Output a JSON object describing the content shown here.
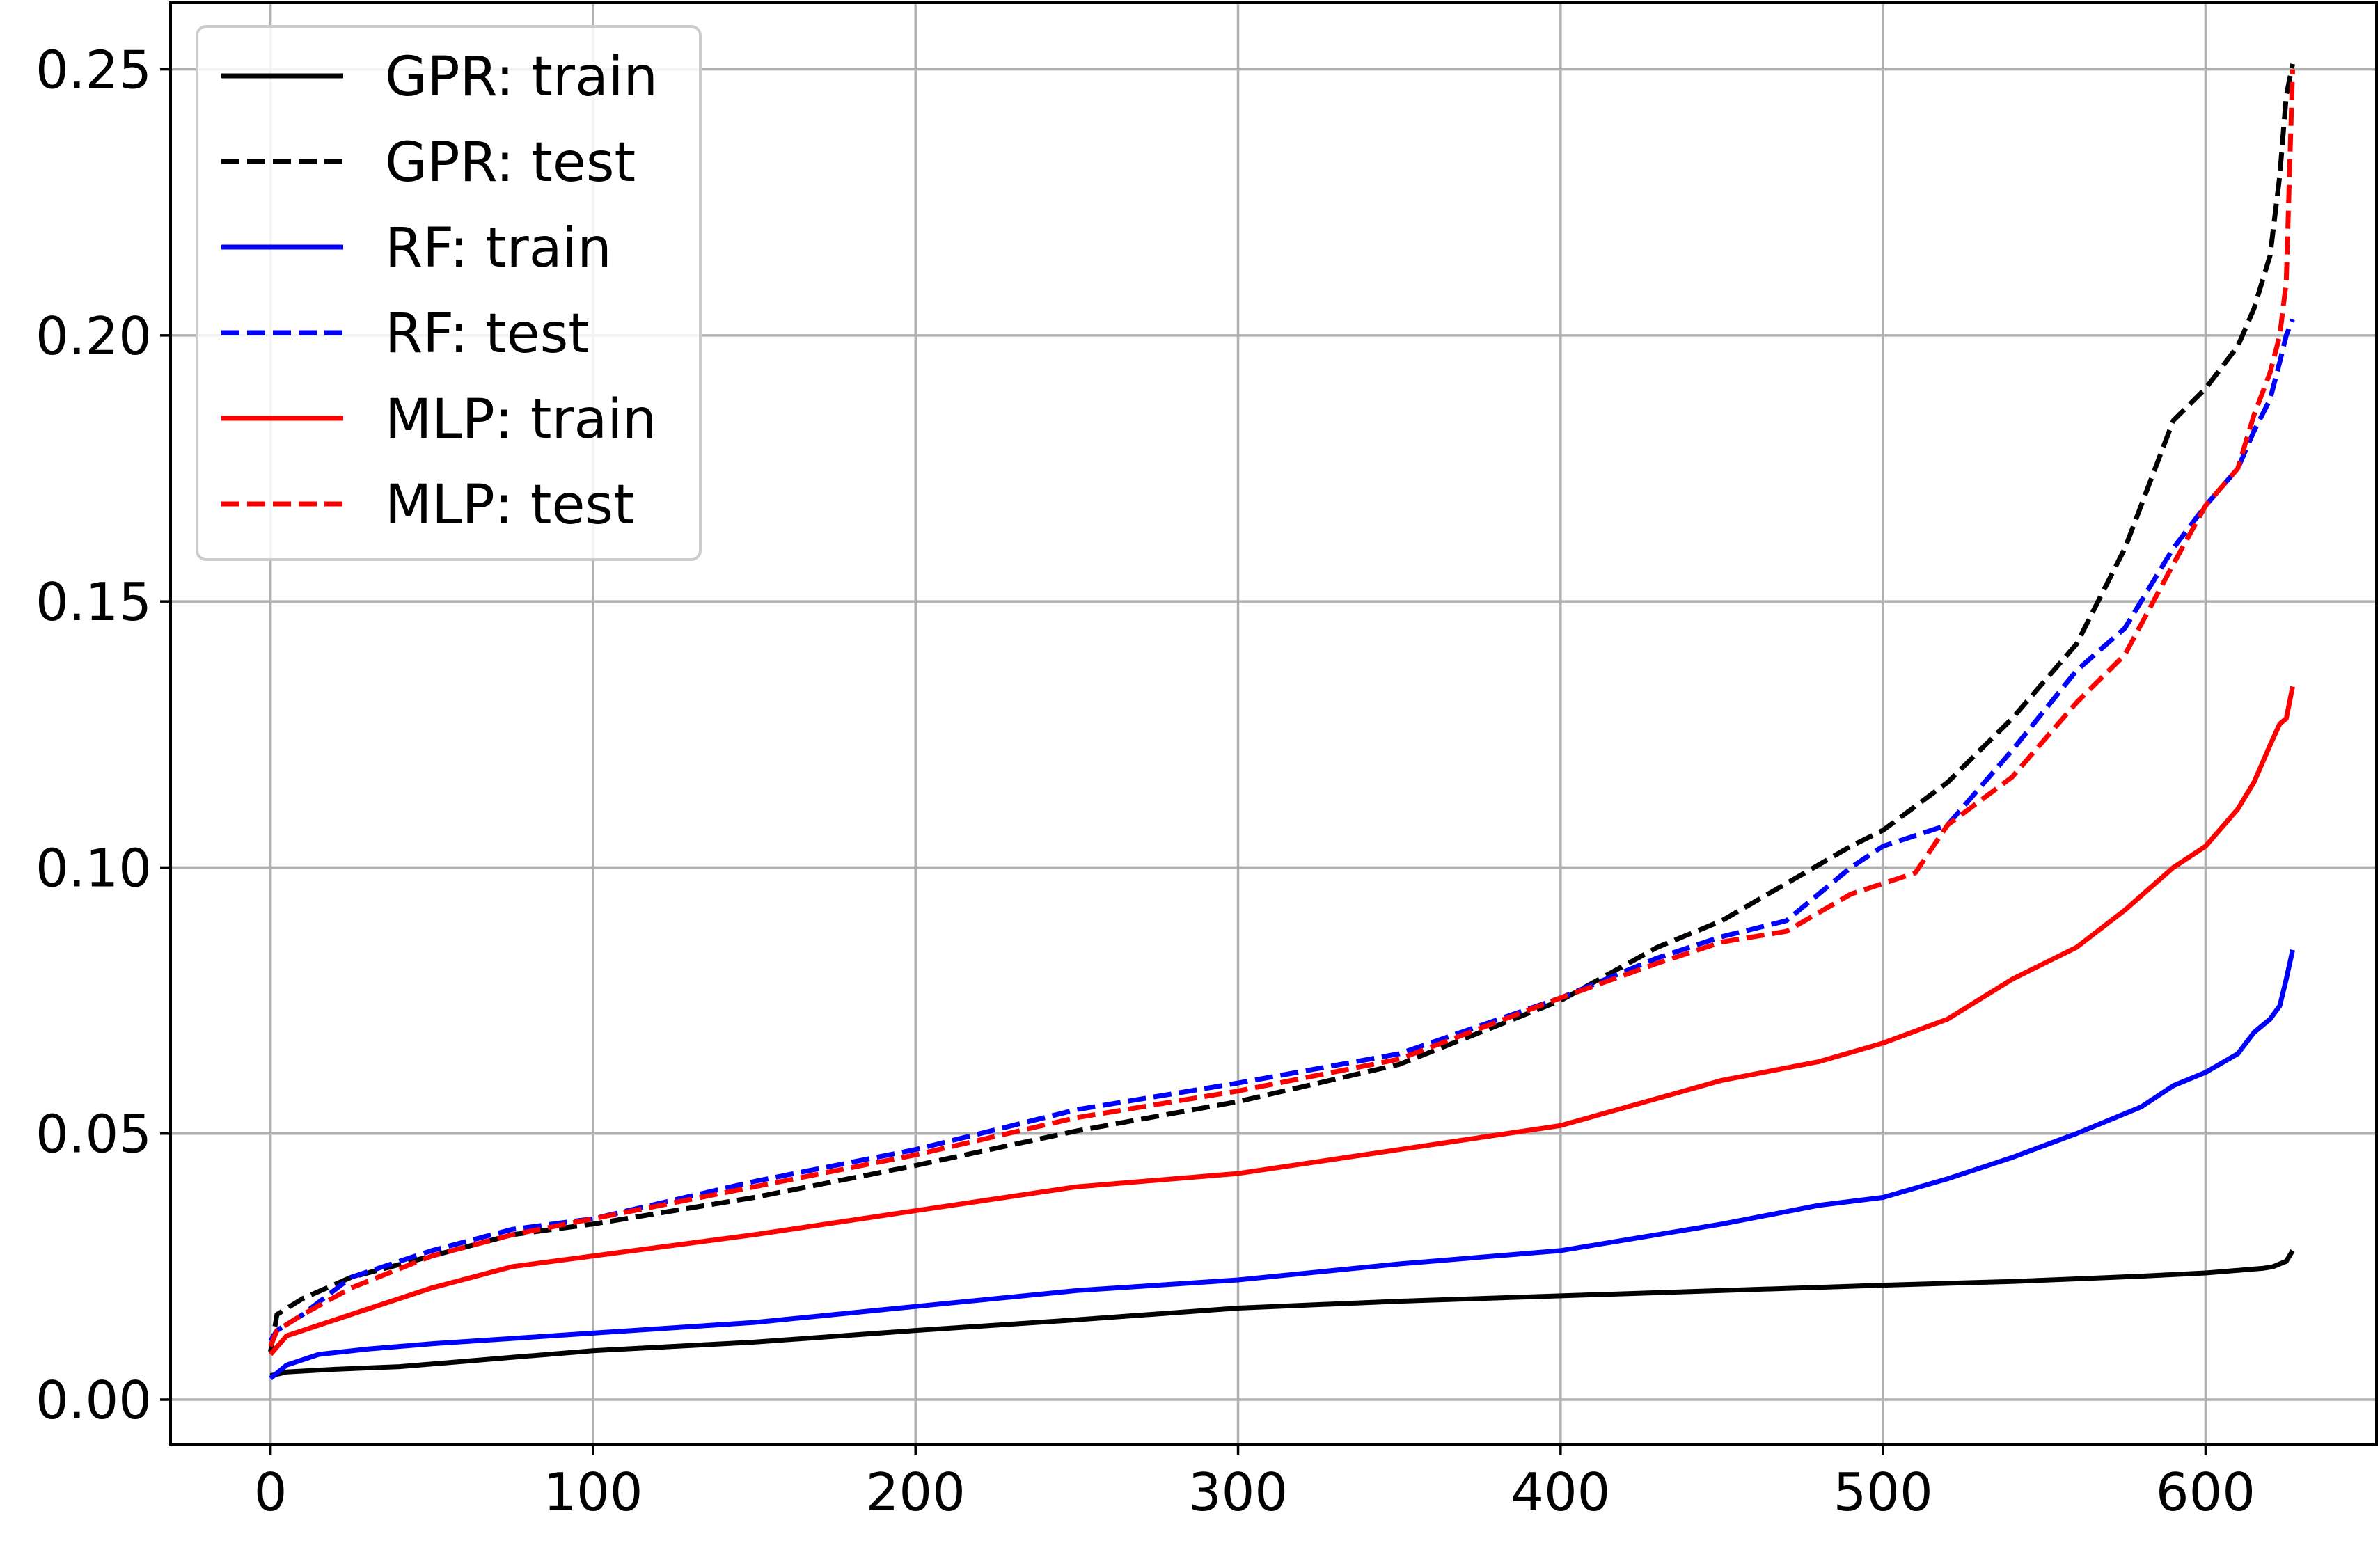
{
  "chart_data": {
    "type": "line",
    "title": "",
    "xlabel": "",
    "ylabel": "",
    "xlim": [
      -31,
      653
    ],
    "ylim": [
      -0.0085,
      0.2625
    ],
    "grid": true,
    "legend_position": "top-left",
    "xticks": [
      0,
      100,
      200,
      300,
      400,
      500,
      600
    ],
    "xtick_labels": [
      "0",
      "100",
      "200",
      "300",
      "400",
      "500",
      "600"
    ],
    "yticks": [
      0.0,
      0.05,
      0.1,
      0.15,
      0.2,
      0.25
    ],
    "ytick_labels": [
      "0.00",
      "0.05",
      "0.10",
      "0.15",
      "0.20",
      "0.25"
    ],
    "series": [
      {
        "name": "GPR: train",
        "color": "#000000",
        "dash": "solid",
        "x": [
          0,
          5,
          20,
          40,
          60,
          80,
          100,
          150,
          200,
          250,
          300,
          350,
          400,
          450,
          500,
          540,
          560,
          580,
          600,
          610,
          618,
          621,
          623,
          625,
          627
        ],
        "y": [
          0.0045,
          0.0052,
          0.0057,
          0.0062,
          0.0072,
          0.0082,
          0.0092,
          0.0108,
          0.013,
          0.015,
          0.0172,
          0.0185,
          0.0195,
          0.0205,
          0.0215,
          0.0222,
          0.0227,
          0.0232,
          0.0238,
          0.0243,
          0.0247,
          0.025,
          0.0255,
          0.026,
          0.028
        ]
      },
      {
        "name": "GPR: test",
        "color": "#000000",
        "dash": "dashed",
        "x": [
          0,
          2,
          10,
          25,
          50,
          75,
          100,
          150,
          200,
          250,
          300,
          350,
          400,
          430,
          450,
          470,
          490,
          500,
          520,
          540,
          560,
          575,
          590,
          600,
          610,
          615,
          620,
          623,
          625,
          627
        ],
        "y": [
          0.009,
          0.016,
          0.019,
          0.023,
          0.027,
          0.031,
          0.033,
          0.038,
          0.044,
          0.0505,
          0.056,
          0.063,
          0.075,
          0.085,
          0.09,
          0.097,
          0.104,
          0.107,
          0.116,
          0.128,
          0.142,
          0.16,
          0.184,
          0.19,
          0.198,
          0.205,
          0.215,
          0.23,
          0.245,
          0.251
        ]
      },
      {
        "name": "RF: train",
        "color": "#0000ff",
        "dash": "solid",
        "x": [
          0,
          5,
          15,
          30,
          50,
          75,
          100,
          150,
          200,
          250,
          300,
          350,
          400,
          450,
          480,
          500,
          520,
          540,
          560,
          580,
          590,
          600,
          610,
          615,
          620,
          623,
          625,
          627
        ],
        "y": [
          0.004,
          0.0065,
          0.0085,
          0.0095,
          0.0105,
          0.0115,
          0.0125,
          0.0145,
          0.0175,
          0.0205,
          0.0225,
          0.0255,
          0.028,
          0.033,
          0.0365,
          0.038,
          0.0415,
          0.0455,
          0.05,
          0.055,
          0.059,
          0.0615,
          0.065,
          0.069,
          0.0715,
          0.074,
          0.079,
          0.0845
        ]
      },
      {
        "name": "RF: test",
        "color": "#0000ff",
        "dash": "dashed",
        "x": [
          0,
          2,
          10,
          25,
          50,
          75,
          100,
          150,
          200,
          250,
          300,
          350,
          400,
          430,
          450,
          470,
          490,
          500,
          520,
          540,
          560,
          575,
          590,
          600,
          610,
          615,
          620,
          623,
          625,
          627
        ],
        "y": [
          0.011,
          0.013,
          0.016,
          0.023,
          0.028,
          0.032,
          0.034,
          0.041,
          0.047,
          0.0545,
          0.0595,
          0.065,
          0.0755,
          0.083,
          0.087,
          0.09,
          0.1,
          0.104,
          0.108,
          0.122,
          0.137,
          0.145,
          0.16,
          0.168,
          0.175,
          0.182,
          0.188,
          0.195,
          0.2,
          0.203
        ]
      },
      {
        "name": "MLP: train",
        "color": "#ff0000",
        "dash": "solid",
        "x": [
          0,
          5,
          15,
          30,
          50,
          75,
          100,
          150,
          200,
          250,
          300,
          350,
          400,
          450,
          480,
          500,
          520,
          540,
          560,
          575,
          590,
          600,
          610,
          615,
          620,
          623,
          625,
          627
        ],
        "y": [
          0.0085,
          0.012,
          0.014,
          0.017,
          0.021,
          0.025,
          0.027,
          0.031,
          0.0355,
          0.04,
          0.0425,
          0.047,
          0.0515,
          0.06,
          0.0635,
          0.067,
          0.0715,
          0.079,
          0.085,
          0.092,
          0.1,
          0.104,
          0.111,
          0.116,
          0.123,
          0.127,
          0.128,
          0.134
        ]
      },
      {
        "name": "MLP: test",
        "color": "#ff0000",
        "dash": "dashed",
        "x": [
          0,
          2,
          10,
          25,
          50,
          75,
          100,
          150,
          200,
          250,
          300,
          350,
          400,
          430,
          450,
          470,
          490,
          500,
          510,
          520,
          540,
          560,
          575,
          590,
          600,
          610,
          615,
          620,
          623,
          625,
          627
        ],
        "y": [
          0.01,
          0.013,
          0.016,
          0.021,
          0.027,
          0.031,
          0.034,
          0.04,
          0.046,
          0.053,
          0.058,
          0.064,
          0.0755,
          0.082,
          0.086,
          0.088,
          0.095,
          0.097,
          0.099,
          0.108,
          0.117,
          0.131,
          0.14,
          0.157,
          0.168,
          0.175,
          0.185,
          0.193,
          0.2,
          0.21,
          0.25
        ]
      }
    ]
  }
}
